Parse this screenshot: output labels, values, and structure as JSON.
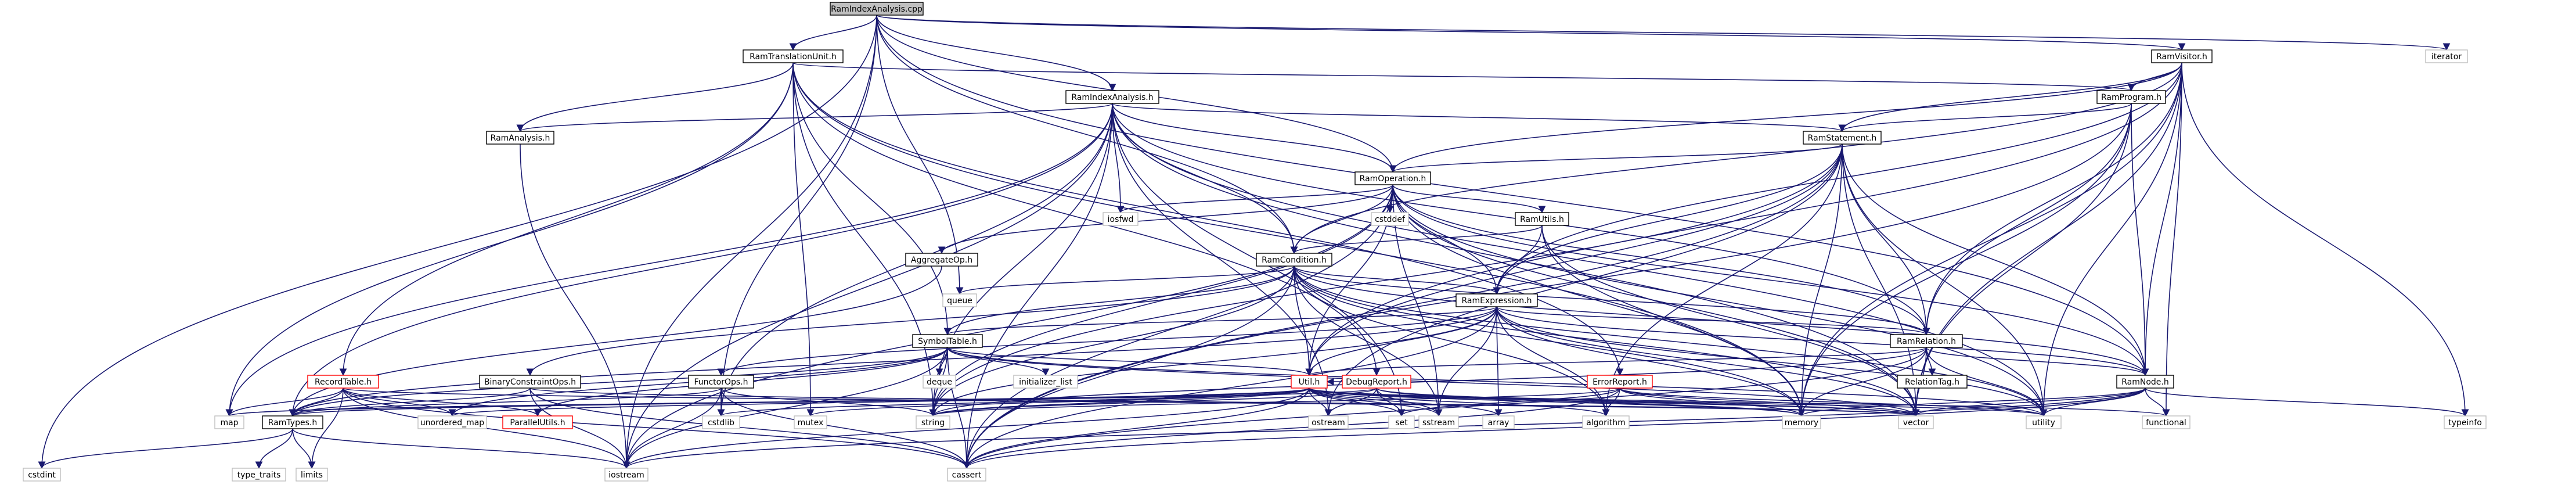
{
  "graph": {
    "title": "RamIndexAnalysis.cpp",
    "nodes": [
      {
        "id": "RamIndexAnalysis.cpp",
        "label": "RamIndexAnalysis.cpp",
        "kind": "hl"
      },
      {
        "id": "RamTranslationUnit.h",
        "label": "RamTranslationUnit.h",
        "kind": "nm"
      },
      {
        "id": "RamIndexAnalysis.h",
        "label": "RamIndexAnalysis.h",
        "kind": "nm"
      },
      {
        "id": "RamVisitor.h",
        "label": "RamVisitor.h",
        "kind": "nm"
      },
      {
        "id": "iterator",
        "label": "iterator",
        "kind": "sys"
      },
      {
        "id": "RamProgram.h",
        "label": "RamProgram.h",
        "kind": "nm"
      },
      {
        "id": "RamAnalysis.h",
        "label": "RamAnalysis.h",
        "kind": "nm"
      },
      {
        "id": "RamStatement.h",
        "label": "RamStatement.h",
        "kind": "nm"
      },
      {
        "id": "RamOperation.h",
        "label": "RamOperation.h",
        "kind": "nm"
      },
      {
        "id": "iosfwd",
        "label": "iosfwd",
        "kind": "sys"
      },
      {
        "id": "cstddef",
        "label": "cstddef",
        "kind": "sys"
      },
      {
        "id": "RamUtils.h",
        "label": "RamUtils.h",
        "kind": "nm"
      },
      {
        "id": "AggregateOp.h",
        "label": "AggregateOp.h",
        "kind": "nm"
      },
      {
        "id": "RamCondition.h",
        "label": "RamCondition.h",
        "kind": "nm"
      },
      {
        "id": "queue",
        "label": "queue",
        "kind": "sys"
      },
      {
        "id": "RamExpression.h",
        "label": "RamExpression.h",
        "kind": "nm"
      },
      {
        "id": "SymbolTable.h",
        "label": "SymbolTable.h",
        "kind": "nm"
      },
      {
        "id": "RamRelation.h",
        "label": "RamRelation.h",
        "kind": "nm"
      },
      {
        "id": "RelationTag.h",
        "label": "RelationTag.h",
        "kind": "nm"
      },
      {
        "id": "RamNode.h",
        "label": "RamNode.h",
        "kind": "nm"
      },
      {
        "id": "typeinfo",
        "label": "typeinfo",
        "kind": "sys"
      },
      {
        "id": "BinaryConstraintOps.h",
        "label": "BinaryConstraintOps.h",
        "kind": "nm"
      },
      {
        "id": "FunctorOps.h",
        "label": "FunctorOps.h",
        "kind": "nm"
      },
      {
        "id": "deque",
        "label": "deque",
        "kind": "sys"
      },
      {
        "id": "initializer_list",
        "label": "initializer_list",
        "kind": "sys"
      },
      {
        "id": "Util.h",
        "label": "Util.h",
        "kind": "rd"
      },
      {
        "id": "DebugReport.h",
        "label": "DebugReport.h",
        "kind": "rd"
      },
      {
        "id": "ErrorReport.h",
        "label": "ErrorReport.h",
        "kind": "rd"
      },
      {
        "id": "RecordTable.h",
        "label": "RecordTable.h",
        "kind": "rd"
      },
      {
        "id": "RamTypes.h",
        "label": "RamTypes.h",
        "kind": "nm"
      },
      {
        "id": "unordered_map",
        "label": "unordered_map",
        "kind": "sys"
      },
      {
        "id": "ParallelUtils.h",
        "label": "ParallelUtils.h",
        "kind": "rd"
      },
      {
        "id": "map",
        "label": "map",
        "kind": "sys"
      },
      {
        "id": "cstdlib",
        "label": "cstdlib",
        "kind": "sys"
      },
      {
        "id": "mutex",
        "label": "mutex",
        "kind": "sys"
      },
      {
        "id": "string",
        "label": "string",
        "kind": "sys"
      },
      {
        "id": "ostream",
        "label": "ostream",
        "kind": "sys"
      },
      {
        "id": "set",
        "label": "set",
        "kind": "sys"
      },
      {
        "id": "sstream",
        "label": "sstream",
        "kind": "sys"
      },
      {
        "id": "array",
        "label": "array",
        "kind": "sys"
      },
      {
        "id": "algorithm",
        "label": "algorithm",
        "kind": "sys"
      },
      {
        "id": "memory",
        "label": "memory",
        "kind": "sys"
      },
      {
        "id": "vector",
        "label": "vector",
        "kind": "sys"
      },
      {
        "id": "utility",
        "label": "utility",
        "kind": "sys"
      },
      {
        "id": "functional",
        "label": "functional",
        "kind": "sys"
      },
      {
        "id": "cstdint",
        "label": "cstdint",
        "kind": "sys"
      },
      {
        "id": "type_traits",
        "label": "type_traits",
        "kind": "sys"
      },
      {
        "id": "limits",
        "label": "limits",
        "kind": "sys"
      },
      {
        "id": "iostream",
        "label": "iostream",
        "kind": "sys"
      },
      {
        "id": "cassert",
        "label": "cassert",
        "kind": "sys"
      }
    ],
    "edges": [
      [
        "RamIndexAnalysis.cpp",
        "RamTranslationUnit.h"
      ],
      [
        "RamIndexAnalysis.cpp",
        "RamIndexAnalysis.h"
      ],
      [
        "RamIndexAnalysis.cpp",
        "RamVisitor.h"
      ],
      [
        "RamIndexAnalysis.cpp",
        "iterator"
      ],
      [
        "RamIndexAnalysis.cpp",
        "RamOperation.h"
      ],
      [
        "RamIndexAnalysis.cpp",
        "RamCondition.h"
      ],
      [
        "RamIndexAnalysis.cpp",
        "RamNode.h"
      ],
      [
        "RamIndexAnalysis.cpp",
        "queue"
      ],
      [
        "RamIndexAnalysis.cpp",
        "cstdlib"
      ],
      [
        "RamIndexAnalysis.cpp",
        "iostream"
      ],
      [
        "RamIndexAnalysis.cpp",
        "cstdint"
      ],
      [
        "RamTranslationUnit.h",
        "RamAnalysis.h"
      ],
      [
        "RamTranslationUnit.h",
        "RamProgram.h"
      ],
      [
        "RamTranslationUnit.h",
        "SymbolTable.h"
      ],
      [
        "RamTranslationUnit.h",
        "RecordTable.h"
      ],
      [
        "RamTranslationUnit.h",
        "DebugReport.h"
      ],
      [
        "RamTranslationUnit.h",
        "ErrorReport.h"
      ],
      [
        "RamTranslationUnit.h",
        "map"
      ],
      [
        "RamTranslationUnit.h",
        "mutex"
      ],
      [
        "RamTranslationUnit.h",
        "string"
      ],
      [
        "RamTranslationUnit.h",
        "memory"
      ],
      [
        "RamIndexAnalysis.h",
        "RamAnalysis.h"
      ],
      [
        "RamIndexAnalysis.h",
        "RamStatement.h"
      ],
      [
        "RamIndexAnalysis.h",
        "RamOperation.h"
      ],
      [
        "RamIndexAnalysis.h",
        "RamCondition.h"
      ],
      [
        "RamIndexAnalysis.h",
        "RamRelation.h"
      ],
      [
        "RamIndexAnalysis.h",
        "RamTypes.h"
      ],
      [
        "RamIndexAnalysis.h",
        "iosfwd"
      ],
      [
        "RamIndexAnalysis.h",
        "map"
      ],
      [
        "RamIndexAnalysis.h",
        "cstdlib"
      ],
      [
        "RamIndexAnalysis.h",
        "set"
      ],
      [
        "RamIndexAnalysis.h",
        "string"
      ],
      [
        "RamIndexAnalysis.h",
        "vector"
      ],
      [
        "RamIndexAnalysis.h",
        "utility"
      ],
      [
        "RamIndexAnalysis.h",
        "cassert"
      ],
      [
        "RamIndexAnalysis.h",
        "ostream"
      ],
      [
        "RamIndexAnalysis.h",
        "iostream"
      ],
      [
        "RamVisitor.h",
        "RamProgram.h"
      ],
      [
        "RamVisitor.h",
        "RamStatement.h"
      ],
      [
        "RamVisitor.h",
        "RamOperation.h"
      ],
      [
        "RamVisitor.h",
        "RamCondition.h"
      ],
      [
        "RamVisitor.h",
        "RamExpression.h"
      ],
      [
        "RamVisitor.h",
        "RamRelation.h"
      ],
      [
        "RamVisitor.h",
        "RamNode.h"
      ],
      [
        "RamVisitor.h",
        "Util.h"
      ],
      [
        "RamVisitor.h",
        "typeinfo"
      ],
      [
        "RamVisitor.h",
        "functional"
      ],
      [
        "RamVisitor.h",
        "vector"
      ],
      [
        "RamVisitor.h",
        "memory"
      ],
      [
        "RamVisitor.h",
        "utility"
      ],
      [
        "RamProgram.h",
        "RamStatement.h"
      ],
      [
        "RamProgram.h",
        "RamRelation.h"
      ],
      [
        "RamProgram.h",
        "RamNode.h"
      ],
      [
        "RamProgram.h",
        "memory"
      ],
      [
        "RamProgram.h",
        "vector"
      ],
      [
        "RamProgram.h",
        "cassert"
      ],
      [
        "RamAnalysis.h",
        "iostream"
      ],
      [
        "RamStatement.h",
        "RamOperation.h"
      ],
      [
        "RamStatement.h",
        "RamExpression.h"
      ],
      [
        "RamStatement.h",
        "RamRelation.h"
      ],
      [
        "RamStatement.h",
        "RamNode.h"
      ],
      [
        "RamStatement.h",
        "Util.h"
      ],
      [
        "RamStatement.h",
        "algorithm"
      ],
      [
        "RamStatement.h",
        "memory"
      ],
      [
        "RamStatement.h",
        "ostream"
      ],
      [
        "RamStatement.h",
        "string"
      ],
      [
        "RamStatement.h",
        "utility"
      ],
      [
        "RamStatement.h",
        "vector"
      ],
      [
        "RamStatement.h",
        "cassert"
      ],
      [
        "RamOperation.h",
        "AggregateOp.h"
      ],
      [
        "RamOperation.h",
        "RamCondition.h"
      ],
      [
        "RamOperation.h",
        "RamExpression.h"
      ],
      [
        "RamOperation.h",
        "RamNode.h"
      ],
      [
        "RamOperation.h",
        "RamRelation.h"
      ],
      [
        "RamOperation.h",
        "RamUtils.h"
      ],
      [
        "RamOperation.h",
        "Util.h"
      ],
      [
        "RamOperation.h",
        "iosfwd"
      ],
      [
        "RamOperation.h",
        "cstddef"
      ],
      [
        "RamOperation.h",
        "cassert"
      ],
      [
        "RamOperation.h",
        "iostream"
      ],
      [
        "RamOperation.h",
        "memory"
      ],
      [
        "RamOperation.h",
        "sstream"
      ],
      [
        "RamOperation.h",
        "string"
      ],
      [
        "RamOperation.h",
        "utility"
      ],
      [
        "RamOperation.h",
        "vector"
      ],
      [
        "RamUtils.h",
        "RamCondition.h"
      ],
      [
        "RamUtils.h",
        "RamExpression.h"
      ],
      [
        "RamUtils.h",
        "memory"
      ],
      [
        "RamUtils.h",
        "vector"
      ],
      [
        "AggregateOp.h",
        "RamTypes.h"
      ],
      [
        "RamCondition.h",
        "BinaryConstraintOps.h"
      ],
      [
        "RamCondition.h",
        "RamExpression.h"
      ],
      [
        "RamCondition.h",
        "RamNode.h"
      ],
      [
        "RamCondition.h",
        "RamRelation.h"
      ],
      [
        "RamCondition.h",
        "SymbolTable.h"
      ],
      [
        "RamCondition.h",
        "Util.h"
      ],
      [
        "RamCondition.h",
        "algorithm"
      ],
      [
        "RamCondition.h",
        "cassert"
      ],
      [
        "RamCondition.h",
        "memory"
      ],
      [
        "RamCondition.h",
        "sstream"
      ],
      [
        "RamCondition.h",
        "string"
      ],
      [
        "RamCondition.h",
        "utility"
      ],
      [
        "RamCondition.h",
        "vector"
      ],
      [
        "RamCondition.h",
        "queue"
      ],
      [
        "RamExpression.h",
        "FunctorOps.h"
      ],
      [
        "RamExpression.h",
        "RamNode.h"
      ],
      [
        "RamExpression.h",
        "RamRelation.h"
      ],
      [
        "RamExpression.h",
        "RamTypes.h"
      ],
      [
        "RamExpression.h",
        "SymbolTable.h"
      ],
      [
        "RamExpression.h",
        "Util.h"
      ],
      [
        "RamExpression.h",
        "algorithm"
      ],
      [
        "RamExpression.h",
        "array"
      ],
      [
        "RamExpression.h",
        "cassert"
      ],
      [
        "RamExpression.h",
        "memory"
      ],
      [
        "RamExpression.h",
        "sstream"
      ],
      [
        "RamExpression.h",
        "string"
      ],
      [
        "RamExpression.h",
        "utility"
      ],
      [
        "RamExpression.h",
        "vector"
      ],
      [
        "SymbolTable.h",
        "ParallelUtils.h"
      ],
      [
        "SymbolTable.h",
        "RamTypes.h"
      ],
      [
        "SymbolTable.h",
        "Util.h"
      ],
      [
        "SymbolTable.h",
        "deque"
      ],
      [
        "SymbolTable.h",
        "initializer_list"
      ],
      [
        "SymbolTable.h",
        "iostream"
      ],
      [
        "SymbolTable.h",
        "string"
      ],
      [
        "SymbolTable.h",
        "unordered_map"
      ],
      [
        "SymbolTable.h",
        "utility"
      ],
      [
        "SymbolTable.h",
        "vector"
      ],
      [
        "SymbolTable.h",
        "cassert"
      ],
      [
        "RamRelation.h",
        "RamNode.h"
      ],
      [
        "RamRelation.h",
        "RelationTag.h"
      ],
      [
        "RamRelation.h",
        "Util.h"
      ],
      [
        "RamRelation.h",
        "cassert"
      ],
      [
        "RamRelation.h",
        "memory"
      ],
      [
        "RamRelation.h",
        "string"
      ],
      [
        "RamRelation.h",
        "utility"
      ],
      [
        "RamRelation.h",
        "vector"
      ],
      [
        "RamNode.h",
        "typeinfo"
      ],
      [
        "RamNode.h",
        "functional"
      ],
      [
        "RamNode.h",
        "iostream"
      ],
      [
        "RamNode.h",
        "memory"
      ],
      [
        "RamNode.h",
        "vector"
      ],
      [
        "RamNode.h",
        "cassert"
      ],
      [
        "RamNode.h",
        "utility"
      ],
      [
        "BinaryConstraintOps.h",
        "RamTypes.h"
      ],
      [
        "BinaryConstraintOps.h",
        "iostream"
      ],
      [
        "BinaryConstraintOps.h",
        "cassert"
      ],
      [
        "BinaryConstraintOps.h",
        "vector"
      ],
      [
        "FunctorOps.h",
        "RamTypes.h"
      ],
      [
        "FunctorOps.h",
        "cassert"
      ],
      [
        "FunctorOps.h",
        "cstdlib"
      ],
      [
        "FunctorOps.h",
        "iostream"
      ],
      [
        "FunctorOps.h",
        "string"
      ],
      [
        "Util.h",
        "RamTypes.h"
      ],
      [
        "Util.h",
        "algorithm"
      ],
      [
        "Util.h",
        "cassert"
      ],
      [
        "Util.h",
        "cstdlib"
      ],
      [
        "Util.h",
        "functional"
      ],
      [
        "Util.h",
        "iostream"
      ],
      [
        "Util.h",
        "map"
      ],
      [
        "Util.h",
        "memory"
      ],
      [
        "Util.h",
        "ostream"
      ],
      [
        "Util.h",
        "set"
      ],
      [
        "Util.h",
        "sstream"
      ],
      [
        "Util.h",
        "string"
      ],
      [
        "Util.h",
        "utility"
      ],
      [
        "Util.h",
        "vector"
      ],
      [
        "Util.h",
        "mutex"
      ],
      [
        "Util.h",
        "array"
      ],
      [
        "Util.h",
        "unordered_map"
      ],
      [
        "DebugReport.h",
        "Util.h"
      ],
      [
        "DebugReport.h",
        "string"
      ],
      [
        "DebugReport.h",
        "sstream"
      ],
      [
        "DebugReport.h",
        "set"
      ],
      [
        "DebugReport.h",
        "vector"
      ],
      [
        "DebugReport.h",
        "map"
      ],
      [
        "DebugReport.h",
        "ostream"
      ],
      [
        "DebugReport.h",
        "memory"
      ],
      [
        "ErrorReport.h",
        "string"
      ],
      [
        "ErrorReport.h",
        "set"
      ],
      [
        "ErrorReport.h",
        "algorithm"
      ],
      [
        "ErrorReport.h",
        "vector"
      ],
      [
        "ErrorReport.h",
        "cassert"
      ],
      [
        "ErrorReport.h",
        "memory"
      ],
      [
        "ErrorReport.h",
        "utility"
      ],
      [
        "RecordTable.h",
        "RamTypes.h"
      ],
      [
        "RecordTable.h",
        "ParallelUtils.h"
      ],
      [
        "RecordTable.h",
        "unordered_map"
      ],
      [
        "RecordTable.h",
        "iostream"
      ],
      [
        "RecordTable.h",
        "cassert"
      ],
      [
        "RecordTable.h",
        "limits"
      ],
      [
        "RecordTable.h",
        "map"
      ],
      [
        "RecordTable.h",
        "vector"
      ],
      [
        "RamTypes.h",
        "cstdint"
      ],
      [
        "RamTypes.h",
        "type_traits"
      ],
      [
        "RamTypes.h",
        "limits"
      ],
      [
        "RamTypes.h",
        "iostream"
      ]
    ]
  }
}
